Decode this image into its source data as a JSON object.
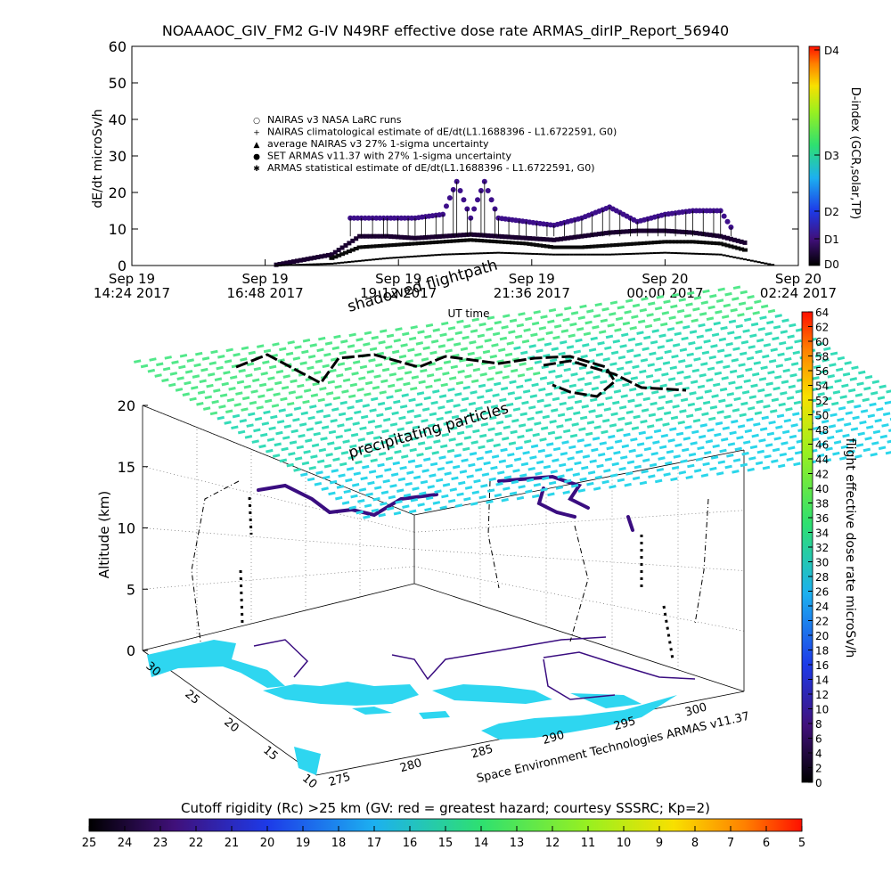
{
  "title": "NOAAAOC_GIV_FM2 G-IV    N49RF   effective dose rate ARMAS_dirIP_Report_56940",
  "top_chart": {
    "ylabel": "dE/dt microSv/h",
    "xlabel": "UT time",
    "yticks": [
      "0",
      "10",
      "20",
      "30",
      "40",
      "50",
      "60"
    ],
    "xticks": [
      {
        "line1": "Sep 19",
        "line2": "14:24 2017"
      },
      {
        "line1": "Sep 19",
        "line2": "16:48 2017"
      },
      {
        "line1": "Sep 19",
        "line2": "19:12 2017"
      },
      {
        "line1": "Sep 19",
        "line2": "21:36 2017"
      },
      {
        "line1": "Sep 20",
        "line2": "00:00 2017"
      },
      {
        "line1": "Sep 20",
        "line2": "02:24 2017"
      }
    ],
    "legend": [
      {
        "symbol": "○",
        "label": "NAIRAS v3 NASA LaRC runs"
      },
      {
        "symbol": "+",
        "label": "NAIRAS climatological estimate of dE/dt(L1.1688396 - L1.6722591, G0)"
      },
      {
        "symbol": "▲",
        "label": "average NAIRAS v3 27% 1-sigma uncertainty"
      },
      {
        "symbol": "●",
        "label": "SET ARMAS v11.37 with 27% 1-sigma uncertainty"
      },
      {
        "symbol": "✱",
        "label": "ARMAS statistical estimate of dE/dt(L1.1688396 - L1.6722591, G0)"
      }
    ],
    "colorbar": {
      "label": "D-index (GCR,solar,TP)",
      "ticks": [
        "D4",
        "D3",
        "D2",
        "D1",
        "D0"
      ]
    }
  },
  "chart_data": [
    {
      "type": "scatter",
      "title": "NOAAAOC_GIV_FM2 G-IV    N49RF   effective dose rate ARMAS_dirIP_Report_56940",
      "xlabel": "UT time",
      "ylabel": "dE/dt microSv/h",
      "ylim": [
        0,
        60
      ],
      "xlim": [
        "2017-09-19 14:24",
        "2017-09-20 02:24"
      ],
      "grid": false,
      "legend_position": "center",
      "series": [
        {
          "name": "NAIRAS climatological estimate of dE/dt(L1.1688396 - L1.6722591, G0)",
          "x": [
            "2017-09-19 17:00",
            "2017-09-19 18:00",
            "2017-09-19 18:30",
            "2017-09-19 19:00",
            "2017-09-19 19:30",
            "2017-09-19 20:00",
            "2017-09-19 20:30",
            "2017-09-19 21:00",
            "2017-09-19 21:30",
            "2017-09-19 22:00",
            "2017-09-19 22:30",
            "2017-09-19 23:00",
            "2017-09-19 23:30",
            "2017-09-20 00:00",
            "2017-09-20 00:30",
            "2017-09-20 01:00",
            "2017-09-20 01:30"
          ],
          "y": [
            0.2,
            3,
            8,
            8,
            7.5,
            8,
            8.5,
            8,
            7.5,
            7,
            8,
            9,
            9.5,
            9.5,
            9,
            8,
            6
          ]
        },
        {
          "name": "ARMAS statistical estimate of dE/dt(L1.1688396 - L1.6722591, G0)",
          "x": [
            "2017-09-19 18:00",
            "2017-09-19 18:30",
            "2017-09-19 19:00",
            "2017-09-19 19:30",
            "2017-09-19 20:00",
            "2017-09-19 20:30",
            "2017-09-19 21:00",
            "2017-09-19 21:30",
            "2017-09-19 22:00",
            "2017-09-19 22:30",
            "2017-09-19 23:00",
            "2017-09-19 23:30",
            "2017-09-20 00:00",
            "2017-09-20 00:30",
            "2017-09-20 01:00",
            "2017-09-20 01:30"
          ],
          "y": [
            2,
            5,
            5.5,
            6,
            6.5,
            7,
            6.5,
            6,
            5,
            5,
            5.5,
            6,
            6.5,
            6.5,
            6,
            4
          ]
        },
        {
          "name": "average NAIRAS v3 27% 1-sigma uncertainty",
          "x": [
            "2017-09-19 17:00",
            "2017-09-19 18:00",
            "2017-09-19 19:00",
            "2017-09-19 20:00",
            "2017-09-19 21:00",
            "2017-09-19 22:00",
            "2017-09-19 23:00",
            "2017-09-20 00:00",
            "2017-09-20 01:00",
            "2017-09-20 01:30",
            "2017-09-20 02:00"
          ],
          "y": [
            0,
            0.5,
            2,
            3,
            3.5,
            3,
            3,
            3.5,
            3,
            1.5,
            0
          ]
        },
        {
          "name": "SET ARMAS v11.37 with 27% 1-sigma uncertainty",
          "x": [
            "2017-09-19 18:20",
            "2017-09-19 19:00",
            "2017-09-19 19:30",
            "2017-09-19 20:00",
            "2017-09-19 20:15",
            "2017-09-19 20:30",
            "2017-09-19 20:45",
            "2017-09-19 21:00",
            "2017-09-19 21:30",
            "2017-09-19 22:00",
            "2017-09-19 22:30",
            "2017-09-19 23:00",
            "2017-09-19 23:30",
            "2017-09-20 00:00",
            "2017-09-20 00:30",
            "2017-09-20 01:00",
            "2017-09-20 01:15"
          ],
          "y": [
            13,
            13,
            13,
            14,
            23,
            13,
            23,
            13,
            12,
            11,
            13,
            16,
            12,
            14,
            15,
            15,
            9
          ]
        }
      ]
    },
    {
      "type": "scatter",
      "title": "",
      "xlabel": "",
      "ylabel": "Altitude (km)",
      "zlim": [
        0,
        20
      ],
      "xlim": [
        275,
        300
      ],
      "ylim": [
        10,
        30
      ],
      "x_ticks": [
        "275",
        "280",
        "285",
        "290",
        "295",
        "300"
      ],
      "y_ticks": [
        "10",
        "15",
        "20",
        "25",
        "30"
      ],
      "z_ticks": [
        "0",
        "5",
        "10",
        "15",
        "20"
      ],
      "annotations": [
        "shadowed flightpath",
        "precipitating particles"
      ],
      "footer": "Space Environment Technologies ARMAS v11.37",
      "colorbar": {
        "label": "flight effective dose rate microSv/h",
        "range": [
          0,
          64
        ],
        "ticks": [
          "0",
          "2",
          "4",
          "6",
          "8",
          "10",
          "12",
          "14",
          "16",
          "18",
          "20",
          "22",
          "24",
          "26",
          "28",
          "30",
          "32",
          "34",
          "36",
          "38",
          "40",
          "42",
          "44",
          "46",
          "48",
          "50",
          "52",
          "54",
          "56",
          "58",
          "60",
          "62",
          "64"
        ]
      }
    },
    {
      "type": "heatmap",
      "title": "Cutoff rigidity (Rc) >25 km (GV: red = greatest hazard; courtesy SSSRC; Kp=2)",
      "colorbar_ticks": [
        "25",
        "24",
        "23",
        "22",
        "21",
        "20",
        "19",
        "18",
        "17",
        "16",
        "15",
        "14",
        "13",
        "12",
        "11",
        "10",
        "9",
        "8",
        "7",
        "6",
        "5"
      ],
      "range": [
        25,
        5
      ]
    }
  ],
  "colors": {
    "armas_points": "#2a0a6b",
    "nairas_points": "#000000",
    "grid_cells": "#3fe0a0",
    "land": "#2ed6f0"
  }
}
